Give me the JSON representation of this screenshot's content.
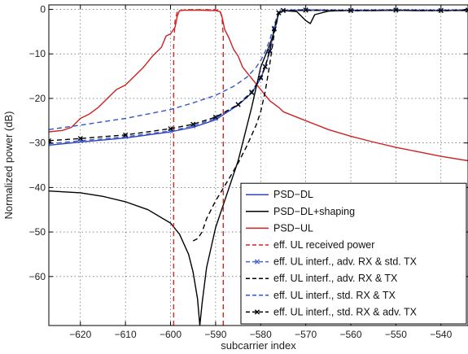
{
  "chart_data": {
    "type": "line",
    "title": "",
    "xlabel": "subcarrier index",
    "ylabel": "Normalized power (dB)",
    "xlim": [
      -627,
      -534
    ],
    "ylim": [
      -71,
      1
    ],
    "xticks": [
      -620,
      -610,
      -600,
      -590,
      -580,
      -570,
      -560,
      -550,
      -540
    ],
    "yticks": [
      0,
      -10,
      -20,
      -30,
      -40,
      -50,
      -60
    ],
    "grid": true,
    "legend_position": "bottom-right",
    "series": [
      {
        "name": "PSD−DL",
        "color": "#3344bb",
        "style": "solid",
        "marker": "none",
        "x": [
          -627,
          -620,
          -610,
          -600,
          -595,
          -590,
          -585,
          -582,
          -580,
          -579,
          -578,
          -577,
          -576,
          -575,
          -570,
          -560,
          -550,
          -540,
          -534
        ],
        "y": [
          -30.5,
          -29.8,
          -28.9,
          -27.5,
          -26.5,
          -24.8,
          -21.5,
          -18.8,
          -15.5,
          -13,
          -9.5,
          -4.5,
          -0.8,
          -0.3,
          -0.2,
          -0.3,
          -0.2,
          -0.3,
          -0.2
        ]
      },
      {
        "name": "PSD−DL+shaping",
        "color": "#000000",
        "style": "solid",
        "marker": "none",
        "x": [
          -627,
          -620,
          -615,
          -610,
          -605,
          -600,
          -598,
          -596,
          -595,
          -594,
          -593.5,
          -593,
          -592,
          -590,
          -588,
          -585,
          -582,
          -580,
          -579,
          -578,
          -577,
          -576,
          -575,
          -572,
          -570,
          -569,
          -568,
          -565,
          -560,
          -555,
          -550,
          -545,
          -540,
          -534
        ],
        "y": [
          -40.8,
          -41.2,
          -42,
          -43.2,
          -45,
          -48,
          -50.5,
          -55,
          -59,
          -65,
          -71,
          -66,
          -58,
          -49,
          -43,
          -34,
          -22,
          -13,
          -10.5,
          -8,
          -5,
          -0.8,
          -0.3,
          -0.5,
          -2.5,
          -3.2,
          -1.2,
          -0.4,
          -0.2,
          -0.3,
          -0.2,
          -0.3,
          -0.2,
          -0.3
        ]
      },
      {
        "name": "PSD−UL",
        "color": "#cc2222",
        "style": "solid",
        "marker": "none",
        "x": [
          -627,
          -624,
          -622,
          -620,
          -618,
          -616,
          -614,
          -612,
          -610,
          -608,
          -606,
          -604,
          -602,
          -601,
          -600,
          -599,
          -598.5,
          -598,
          -597,
          -596,
          -593,
          -590,
          -589,
          -588.5,
          -588,
          -587,
          -586,
          -585,
          -584,
          -582,
          -580,
          -578,
          -576,
          -575,
          -570,
          -565,
          -560,
          -555,
          -550,
          -545,
          -540,
          -534
        ],
        "y": [
          -27.5,
          -27.2,
          -26.5,
          -24.5,
          -23.5,
          -22,
          -20,
          -18,
          -17,
          -15,
          -13,
          -10.5,
          -8.5,
          -6,
          -5.5,
          -4,
          -1.5,
          -0.3,
          -0.2,
          -0.2,
          -0.2,
          -0.3,
          -0.5,
          -2,
          -4.5,
          -6.5,
          -9,
          -10.5,
          -13,
          -15.5,
          -18,
          -20.5,
          -22,
          -23,
          -25,
          -27,
          -28.5,
          -29.8,
          -31,
          -32,
          -33,
          -34
        ]
      },
      {
        "name": "eff. UL received power",
        "color": "#dd2222",
        "style": "dashed",
        "marker": "none",
        "x": [
          -599.3,
          -599.3,
          -599,
          -598.5,
          -597.5,
          -596,
          -593,
          -590,
          -589,
          -588.6,
          -588.3,
          -588.3
        ],
        "y": [
          -71,
          -8,
          -2.5,
          -0.6,
          -0.2,
          -0.1,
          -0.1,
          -0.1,
          -0.3,
          -1.5,
          -6,
          -71
        ]
      },
      {
        "name": "eff. UL interf., adv. RX & std. TX",
        "color": "#4466cc",
        "style": "dashed",
        "marker": "x",
        "x": [
          -627,
          -620,
          -610,
          -600,
          -595,
          -590,
          -585,
          -582,
          -580,
          -579,
          -578,
          -577,
          -576,
          -575,
          -570,
          -560,
          -550,
          -540,
          -534
        ],
        "y": [
          -30.2,
          -29.5,
          -28.6,
          -27.3,
          -26.2,
          -24.5,
          -21.3,
          -18.5,
          -15.2,
          -12.8,
          -9.2,
          -4.2,
          -0.7,
          -0.2,
          -0.1,
          -0.2,
          -0.1,
          -0.2,
          -0.1
        ]
      },
      {
        "name": "eff. UL interf., adv. RX & TX",
        "color": "#000000",
        "style": "dashed",
        "marker": "none",
        "x": [
          -595,
          -594,
          -593,
          -592,
          -590,
          -587,
          -585,
          -583,
          -581,
          -580,
          -579,
          -578,
          -577,
          -576,
          -575,
          -570,
          -560,
          -550,
          -540,
          -534
        ],
        "y": [
          -52,
          -51.5,
          -50,
          -47,
          -43,
          -38,
          -34.5,
          -30.5,
          -26,
          -23,
          -18.5,
          -12.5,
          -5.5,
          -0.9,
          -0.3,
          -0.2,
          -0.3,
          -0.2,
          -0.3,
          -0.2
        ]
      },
      {
        "name": "eff. UL interf., std. RX & TX",
        "color": "#3355cc",
        "style": "dashed",
        "marker": "none",
        "x": [
          -627,
          -620,
          -610,
          -600,
          -595,
          -590,
          -586,
          -583,
          -581,
          -580,
          -579,
          -578,
          -577,
          -576,
          -575,
          -570,
          -560,
          -550,
          -540,
          -534
        ],
        "y": [
          -27,
          -26,
          -24.5,
          -22.5,
          -21,
          -19.3,
          -17.3,
          -15.2,
          -13,
          -11.5,
          -9.5,
          -7,
          -3.5,
          -0.6,
          -0.2,
          -0.1,
          -0.2,
          -0.1,
          -0.2,
          -0.1
        ]
      },
      {
        "name": "eff. UL interf., std. RX & adv. TX",
        "color": "#000000",
        "style": "dashed",
        "marker": "x",
        "x": [
          -627,
          -620,
          -610,
          -600,
          -595,
          -590,
          -585,
          -582,
          -580,
          -579,
          -578,
          -577,
          -576,
          -575,
          -570,
          -560,
          -550,
          -540,
          -534
        ],
        "y": [
          -29.5,
          -29,
          -28.2,
          -26.8,
          -25.8,
          -24.2,
          -21.4,
          -18.7,
          -15.4,
          -12.9,
          -9.4,
          -4.4,
          -0.8,
          -0.3,
          -0.2,
          -0.3,
          -0.2,
          -0.3,
          -0.2
        ]
      }
    ]
  }
}
